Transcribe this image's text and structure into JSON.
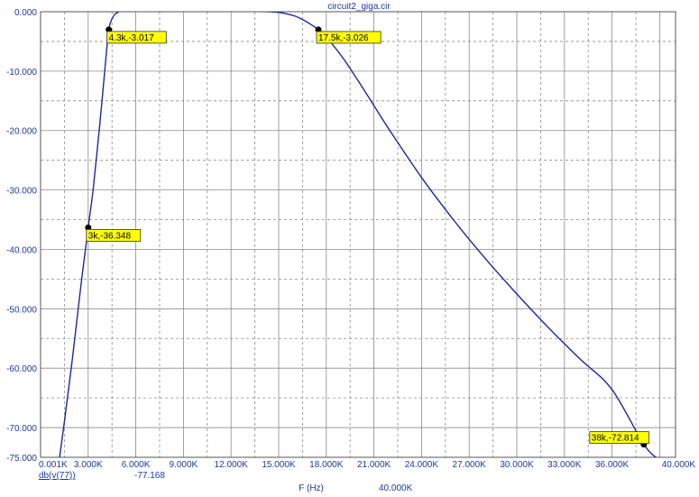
{
  "chart_data": {
    "type": "line",
    "title": "circuit2_giga.cir",
    "xlabel": "F (Hz)",
    "ylabel": "",
    "xlim": [
      1,
      40000
    ],
    "ylim": [
      -75,
      0
    ],
    "x_tick_labels": [
      "0.001K",
      "3.000K",
      "6.000K",
      "9.000K",
      "12.000K",
      "15.000K",
      "18.000K",
      "21.000K",
      "24.000K",
      "27.000K",
      "30.000K",
      "33.000K",
      "36.000K",
      "40.000K"
    ],
    "x_tick_values": [
      1,
      3000,
      6000,
      9000,
      12000,
      15000,
      18000,
      21000,
      24000,
      27000,
      30000,
      33000,
      36000,
      40000
    ],
    "y_tick_labels": [
      "0.000",
      "-10.000",
      "-20.000",
      "-30.000",
      "-40.000",
      "-50.000",
      "-60.000",
      "-70.000",
      "-75.000"
    ],
    "y_tick_values": [
      0,
      -10,
      -20,
      -30,
      -40,
      -50,
      -60,
      -70,
      -75
    ],
    "grid": true,
    "line_color": "#1a2a9c",
    "series": [
      {
        "name": "db(v(77))",
        "x": [
          1200,
          1500,
          2000,
          2500,
          3000,
          3300,
          3600,
          3900,
          4100,
          4300,
          4500,
          4700,
          4900,
          5000,
          5200,
          6000,
          8000,
          10000,
          12000,
          13000,
          14000,
          14500,
          15000,
          15500,
          16000,
          16500,
          17000,
          17500,
          18000,
          19000,
          20000,
          21000,
          22000,
          24000,
          26000,
          28000,
          30000,
          32000,
          34000,
          36000,
          38000,
          39000
        ],
        "y": [
          -75,
          -69,
          -58.5,
          -47,
          -36.35,
          -30.2,
          -22.5,
          -14.2,
          -8.3,
          -3.02,
          -1.2,
          -0.4,
          -0.05,
          0.3,
          0.6,
          0.9,
          0.8,
          0.8,
          0.7,
          0.4,
          0.05,
          0.0,
          -0.1,
          -0.35,
          -0.7,
          -1.3,
          -2.1,
          -3.03,
          -4.3,
          -7.6,
          -11.6,
          -15.8,
          -20.0,
          -27.9,
          -35.0,
          -41.5,
          -47.5,
          -53.2,
          -58.5,
          -63.6,
          -72.81,
          -75.5
        ]
      }
    ],
    "markers": [
      {
        "x": 3000,
        "y": -36.348,
        "label": "3k,-36.348"
      },
      {
        "x": 4300,
        "y": -3.017,
        "label": "4.3k,-3.017"
      },
      {
        "x": 17500,
        "y": -3.026,
        "label": "17.5k,-3.026"
      },
      {
        "x": 38000,
        "y": -72.814,
        "label": "38k,-72.814"
      }
    ],
    "footer": {
      "trace_name": "db(v(77))",
      "trace_value": "-77.168",
      "x_value": "40.000K"
    }
  }
}
